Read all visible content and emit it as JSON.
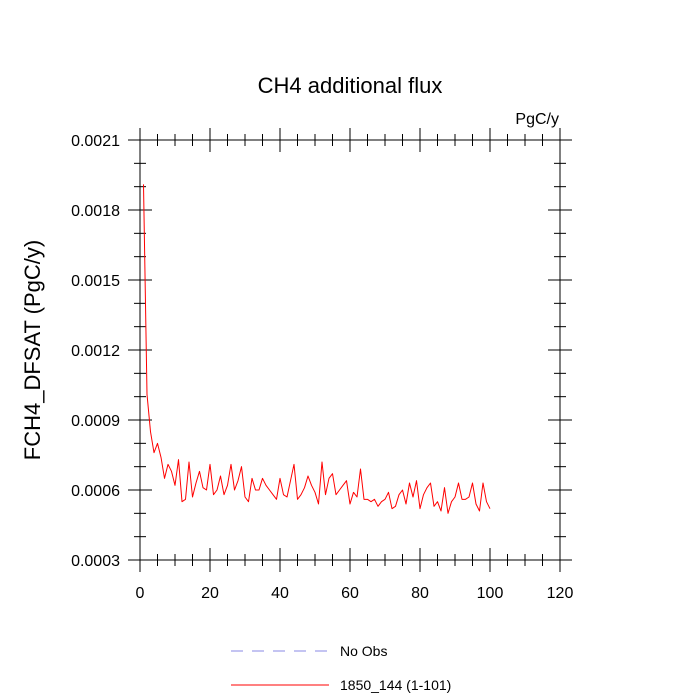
{
  "chart_data": {
    "type": "line",
    "title": "CH4 additional flux",
    "units_label": "PgC/y",
    "ylabel": "FCH4_DFSAT  (PgC/y)",
    "xlabel": "",
    "xlim": [
      0,
      120
    ],
    "ylim": [
      0.0003,
      0.0021
    ],
    "x_major_ticks": [
      0,
      20,
      40,
      60,
      80,
      100,
      120
    ],
    "x_tick_labels": [
      "0",
      "20",
      "40",
      "60",
      "80",
      "100",
      "120"
    ],
    "x_minor_step": 5,
    "y_major_ticks": [
      0.0003,
      0.0006,
      0.0009,
      0.0012,
      0.0015,
      0.0018,
      0.0021
    ],
    "y_tick_labels": [
      "0.0003",
      "0.0006",
      "0.0009",
      "0.0012",
      "0.0015",
      "0.0018",
      "0.0021"
    ],
    "y_minor_step": 0.0001,
    "grid": false,
    "legend_position": "bottom-center",
    "legend": [
      {
        "label": "No Obs",
        "color": "#8a8ae6",
        "style": "dashed"
      },
      {
        "label": "1850_144 (1-101)",
        "color": "#ff0000",
        "style": "solid"
      }
    ],
    "series": [
      {
        "name": "1850_144 (1-101)",
        "color": "#ff0000",
        "x_start": 1,
        "x_step": 1,
        "values": [
          0.00191,
          0.00101,
          0.00085,
          0.00076,
          0.0008,
          0.00074,
          0.00065,
          0.00071,
          0.00068,
          0.00062,
          0.00073,
          0.00055,
          0.00056,
          0.00072,
          0.00057,
          0.00063,
          0.00068,
          0.00061,
          0.0006,
          0.00071,
          0.00058,
          0.0006,
          0.00066,
          0.00058,
          0.00062,
          0.00071,
          0.0006,
          0.00064,
          0.0007,
          0.00057,
          0.00055,
          0.00065,
          0.0006,
          0.0006,
          0.00065,
          0.00062,
          0.0006,
          0.00058,
          0.00056,
          0.00065,
          0.00058,
          0.00057,
          0.00064,
          0.00071,
          0.00056,
          0.00058,
          0.00061,
          0.00066,
          0.00062,
          0.00059,
          0.00054,
          0.00072,
          0.00058,
          0.00065,
          0.00067,
          0.00058,
          0.0006,
          0.00062,
          0.00064,
          0.00054,
          0.00059,
          0.00057,
          0.00069,
          0.00056,
          0.00056,
          0.00055,
          0.00056,
          0.00053,
          0.00055,
          0.00056,
          0.00059,
          0.00052,
          0.00053,
          0.00058,
          0.0006,
          0.00054,
          0.00063,
          0.00057,
          0.00064,
          0.00052,
          0.00058,
          0.00061,
          0.00063,
          0.00053,
          0.00055,
          0.00051,
          0.00061,
          0.0005,
          0.00055,
          0.00057,
          0.00063,
          0.00056,
          0.00056,
          0.00057,
          0.00063,
          0.00054,
          0.00051,
          0.00063,
          0.00055,
          0.00052
        ]
      }
    ]
  }
}
